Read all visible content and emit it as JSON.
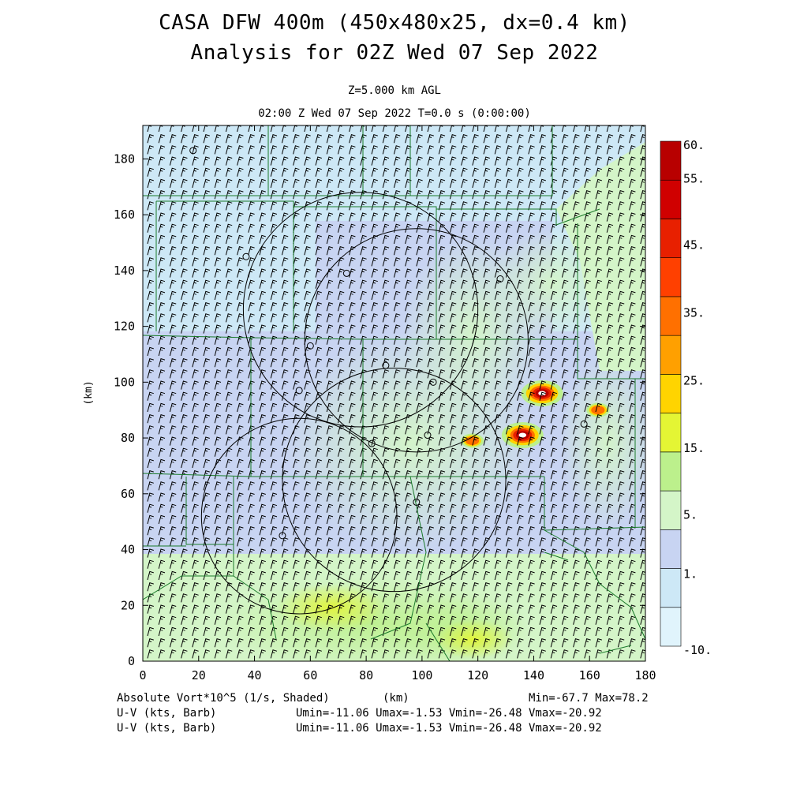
{
  "header": {
    "title_line1": "CASA DFW 400m (450x480x25, dx=0.4 km)",
    "title_line2": "Analysis for 02Z Wed 07 Sep 2022",
    "level": "Z=5.000 km AGL",
    "time": "02:00 Z Wed 07 Sep 2022   T=0.0 s (0:00:00)"
  },
  "chart_data": {
    "type": "heatmap",
    "xlabel": "(km)",
    "ylabel": "(km)",
    "xlim": [
      0,
      180
    ],
    "ylim": [
      0,
      192
    ],
    "x_ticks": [
      "0",
      "20",
      "40",
      "60",
      "80",
      "100",
      "120",
      "140",
      "160",
      "180"
    ],
    "y_ticks": [
      "0",
      "20",
      "40",
      "60",
      "80",
      "100",
      "120",
      "140",
      "160",
      "180"
    ],
    "colorbar": {
      "labels": [
        "60.",
        "55.",
        "45.",
        "35.",
        "25.",
        "15.",
        "5.",
        "1.",
        "-10."
      ],
      "colors": [
        "#e0f4fc",
        "#cde8f6",
        "#c8d4f2",
        "#d4f5c8",
        "#bcf08c",
        "#e4f534",
        "#ffd400",
        "#ffa000",
        "#ff7000",
        "#ff4000",
        "#e82000",
        "#d00000",
        "#b80000"
      ]
    },
    "wind_barb": {
      "u_kts": -6,
      "v_kts": -23
    },
    "vortex_max": [
      {
        "x": 143,
        "y": 96
      },
      {
        "x": 136,
        "y": 81
      },
      {
        "x": 163,
        "y": 90
      },
      {
        "x": 118,
        "y": 79
      }
    ],
    "radar_rings": [
      {
        "x": 78,
        "y": 126,
        "r": 42
      },
      {
        "x": 98,
        "y": 115,
        "r": 40
      },
      {
        "x": 90,
        "y": 65,
        "r": 40
      },
      {
        "x": 56,
        "y": 52,
        "r": 35
      }
    ],
    "stations": [
      {
        "x": 18,
        "y": 183
      },
      {
        "x": 37,
        "y": 145
      },
      {
        "x": 73,
        "y": 139
      },
      {
        "x": 128,
        "y": 137
      },
      {
        "x": 60,
        "y": 113
      },
      {
        "x": 87,
        "y": 106
      },
      {
        "x": 104,
        "y": 100
      },
      {
        "x": 56,
        "y": 97
      },
      {
        "x": 102,
        "y": 81
      },
      {
        "x": 82,
        "y": 78
      },
      {
        "x": 158,
        "y": 85
      },
      {
        "x": 98,
        "y": 57
      },
      {
        "x": 50,
        "y": 45
      }
    ]
  },
  "footer": {
    "field1": "Absolute Vort*10^5 (1/s, Shaded)",
    "xunit": "(km)",
    "minmax": "Min=-67.7 Max=78.2",
    "field2": "U-V (kts, Barb)",
    "stats2": "Umin=-11.06 Umax=-1.53 Vmin=-26.48 Vmax=-20.92",
    "field3": "U-V (kts, Barb)",
    "stats3": "Umin=-11.06 Umax=-1.53 Vmin=-26.48 Vmax=-20.92"
  }
}
